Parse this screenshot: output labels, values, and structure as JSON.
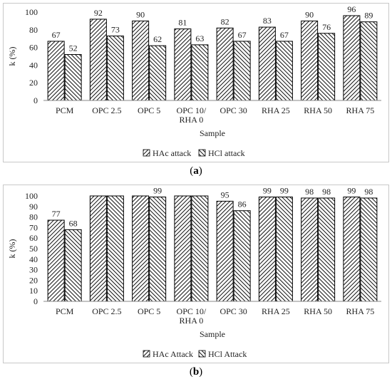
{
  "figure": {
    "charts": [
      {
        "id": "a",
        "caption_open": "(",
        "caption_letter": "a",
        "caption_close": ")"
      },
      {
        "id": "b",
        "caption_open": "(",
        "caption_letter": "b",
        "caption_close": ")"
      }
    ]
  },
  "chart_data": [
    {
      "type": "bar",
      "categories": [
        "PCM",
        "OPC 2.5",
        "OPC 5",
        "OPC 10/\nRHA 0",
        "OPC 30",
        "RHA 25",
        "RHA 50",
        "RHA 75"
      ],
      "series": [
        {
          "name": "HAc attack",
          "values": [
            67,
            92,
            90,
            81,
            82,
            83,
            90,
            96
          ],
          "labels": [
            "67",
            "92",
            "90",
            "81",
            "82",
            "83",
            "90",
            "96"
          ]
        },
        {
          "name": "HCl attack",
          "values": [
            52,
            73,
            62,
            63,
            67,
            67,
            76,
            89
          ],
          "labels": [
            "52",
            "73",
            "62",
            "63",
            "67",
            "67",
            "76",
            "89"
          ]
        }
      ],
      "xlabel": "Sample",
      "ylabel": "k (%)",
      "ylim": [
        0,
        100
      ],
      "yticks": [
        0,
        20,
        40,
        60,
        80,
        100
      ],
      "grid": false,
      "legend": "bottom",
      "bar_fill": "diagonal-hatch"
    },
    {
      "type": "bar",
      "categories": [
        "PCM",
        "OPC 2.5",
        "OPC 5",
        "OPC 10/\nRHA 0",
        "OPC 30",
        "RHA 25",
        "RHA 50",
        "RHA 75"
      ],
      "series": [
        {
          "name": "HAc Attack",
          "values": [
            77,
            100,
            100,
            100,
            95,
            99,
            98,
            99
          ],
          "labels": [
            "77",
            "",
            "",
            "",
            "95",
            "99",
            "98",
            "99"
          ]
        },
        {
          "name": "HCl Attack",
          "values": [
            68,
            100,
            99,
            100,
            86,
            99,
            98,
            98
          ],
          "labels": [
            "68",
            "",
            "99",
            "",
            "86",
            "99",
            "98",
            "98"
          ]
        }
      ],
      "xlabel": "Sample",
      "ylabel": "k (%)",
      "ylim": [
        0,
        100
      ],
      "yticks": [
        0,
        10,
        20,
        30,
        40,
        50,
        60,
        70,
        80,
        90,
        100
      ],
      "grid": false,
      "legend": "bottom",
      "bar_fill": "diagonal-hatch"
    }
  ],
  "colors": {
    "bar_stroke": "#000000",
    "hatch": "#111111",
    "frame": "#c8c8c8",
    "text": "#222222"
  }
}
